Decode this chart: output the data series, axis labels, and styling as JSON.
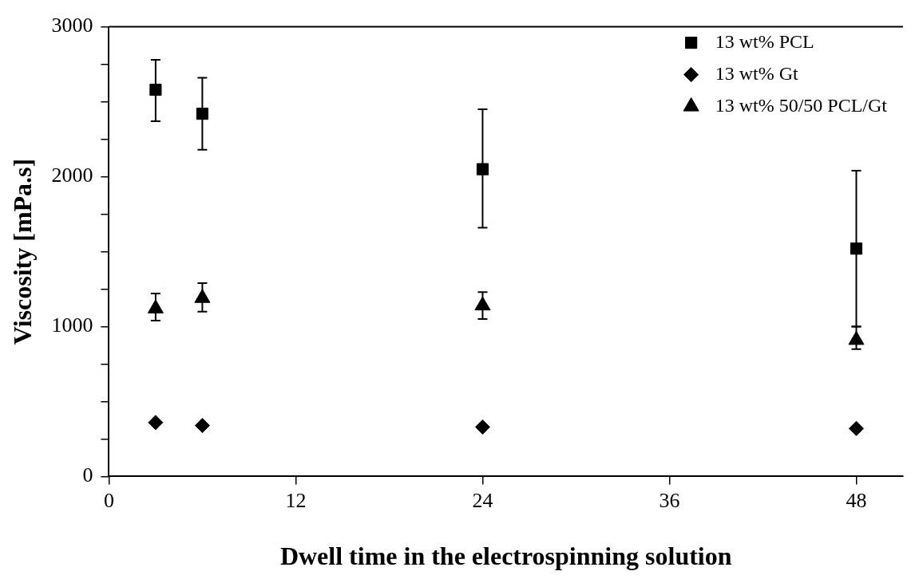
{
  "chart_data": {
    "type": "scatter",
    "xlabel": "Dwell time in the electrospinning solution",
    "ylabel": "Viscosity [mPa.s]",
    "x": [
      3,
      6,
      24,
      48
    ],
    "xlim": [
      0,
      51
    ],
    "xticks": [
      0,
      12,
      24,
      36,
      48
    ],
    "ylim": [
      0,
      3000
    ],
    "yticks": [
      0,
      1000,
      2000,
      3000
    ],
    "legend": "top right",
    "grid": false,
    "series": [
      {
        "name": "13 wt% PCL",
        "color": "#000000",
        "marker": "square",
        "values": [
          2580,
          2420,
          2050,
          1520
        ],
        "errors": [
          [
            2370,
            2780
          ],
          [
            2180,
            2660
          ],
          [
            1660,
            2450
          ],
          [
            1000,
            2040
          ]
        ]
      },
      {
        "name": "13 wt% Gt",
        "color": "#000000",
        "marker": "diamond",
        "values": [
          360,
          340,
          330,
          320
        ]
      },
      {
        "name": "13 wt% 50/50 PCL/Gt",
        "color": "#000000",
        "marker": "triangle",
        "values": [
          1120,
          1190,
          1140,
          910
        ],
        "errors": [
          [
            1040,
            1220
          ],
          [
            1100,
            1290
          ],
          [
            1050,
            1230
          ],
          [
            850,
            1000
          ]
        ]
      }
    ]
  }
}
